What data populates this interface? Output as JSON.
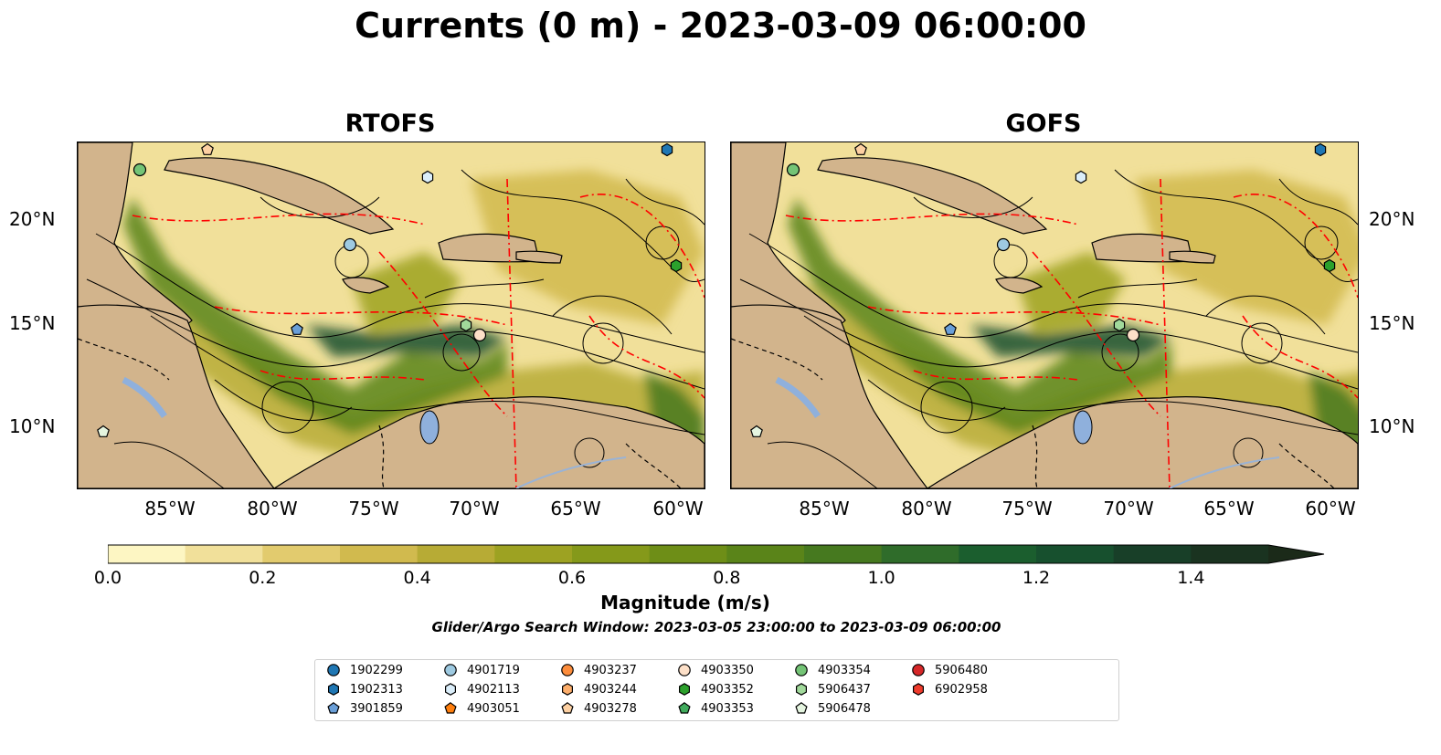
{
  "title": "Currents (0 m) - 2023-03-09 06:00:00",
  "panels": [
    {
      "title": "RTOFS"
    },
    {
      "title": "GOFS"
    }
  ],
  "axes": {
    "x_ticks": [
      "85°W",
      "80°W",
      "75°W",
      "70°W",
      "65°W",
      "60°W"
    ],
    "y_ticks": [
      "20°N",
      "15°N",
      "10°N"
    ]
  },
  "colorbar": {
    "ticks": [
      "0.0",
      "0.2",
      "0.4",
      "0.6",
      "0.8",
      "1.0",
      "1.2",
      "1.4"
    ],
    "label": "Magnitude (m/s)",
    "min": 0.0,
    "max": 1.5,
    "extend": "max",
    "colors": [
      "#fdf6c3",
      "#f1e09a",
      "#e2cb6e",
      "#d1ba4e",
      "#b7ab35",
      "#9da222",
      "#85991a",
      "#6e8e17",
      "#5a8419",
      "#46791f",
      "#2f6c2a",
      "#1b5e2e",
      "#17502e",
      "#183f28",
      "#1a3320",
      "#1b2a19"
    ]
  },
  "subtitle": "Glider/Argo Search Window: 2023-03-05 23:00:00 to 2023-03-09 06:00:00",
  "legend": [
    {
      "label": "1902299",
      "marker": "circle",
      "color": "#1f77b4"
    },
    {
      "label": "1902313",
      "marker": "hexagon",
      "color": "#1f77b4"
    },
    {
      "label": "3901859",
      "marker": "pentagon",
      "color": "#6a9fd8"
    },
    {
      "label": "4901719",
      "marker": "circle",
      "color": "#9ecae1"
    },
    {
      "label": "4902113",
      "marker": "hexagon",
      "color": "#dbeefa"
    },
    {
      "label": "4903051",
      "marker": "pentagon",
      "color": "#ff7f0e"
    },
    {
      "label": "4903237",
      "marker": "circle",
      "color": "#fd8d3c"
    },
    {
      "label": "4903244",
      "marker": "hexagon",
      "color": "#fdae6b"
    },
    {
      "label": "4903278",
      "marker": "pentagon",
      "color": "#fdd0a2"
    },
    {
      "label": "4903350",
      "marker": "circle",
      "color": "#fde0c8"
    },
    {
      "label": "4903352",
      "marker": "hexagon",
      "color": "#2ca02c"
    },
    {
      "label": "4903353",
      "marker": "pentagon",
      "color": "#41ab5d"
    },
    {
      "label": "4903354",
      "marker": "circle",
      "color": "#74c476"
    },
    {
      "label": "5906437",
      "marker": "hexagon",
      "color": "#a1d99b"
    },
    {
      "label": "5906478",
      "marker": "pentagon",
      "color": "#e5f5e0"
    },
    {
      "label": "5906480",
      "marker": "circle",
      "color": "#d62728"
    },
    {
      "label": "6902958",
      "marker": "hexagon",
      "color": "#ef3b2c"
    }
  ],
  "colors": {
    "land": "#d2b48c",
    "lakes": "#8fb0dc",
    "eez_boundary": "#ff0000",
    "streamlines": "#000000"
  }
}
